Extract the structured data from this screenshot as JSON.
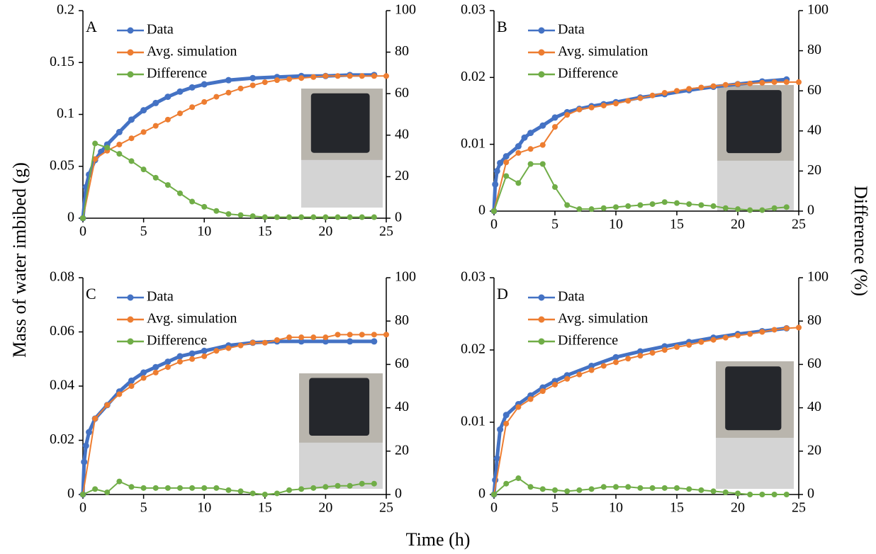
{
  "axis_labels": {
    "x_label": "Time (h)",
    "y_label": "Mass of water imbibed (g)",
    "y2_label": "Difference (%)"
  },
  "chart_data": [
    {
      "type": "line",
      "panel_label": "A",
      "legend": "upper left",
      "xlim": [
        0,
        25
      ],
      "xticks": [
        0,
        5,
        10,
        15,
        20,
        25
      ],
      "ylim": [
        0,
        0.2
      ],
      "yticks": [
        0,
        0.05,
        0.1,
        0.15,
        0.2
      ],
      "y2lim": [
        0,
        100
      ],
      "y2ticks": [
        0,
        20,
        40,
        60,
        80,
        100
      ],
      "series": [
        {
          "name": "Data",
          "color": "#4472c4",
          "x": [
            0,
            0.25,
            0.5,
            1,
            1.5,
            2,
            3,
            4,
            5,
            6,
            7,
            8,
            9,
            10,
            12,
            14,
            16,
            18,
            20,
            22,
            24
          ],
          "values": [
            0,
            0.03,
            0.042,
            0.056,
            0.064,
            0.071,
            0.083,
            0.095,
            0.104,
            0.111,
            0.117,
            0.122,
            0.126,
            0.129,
            0.133,
            0.135,
            0.136,
            0.137,
            0.137,
            0.138,
            0.138
          ]
        },
        {
          "name": "Avg. simulation",
          "color": "#ed7d31",
          "x": [
            0,
            1,
            2,
            3,
            4,
            5,
            6,
            7,
            8,
            9,
            10,
            11,
            12,
            13,
            14,
            15,
            16,
            17,
            18,
            19,
            20,
            21,
            22,
            23,
            24,
            25
          ],
          "values": [
            0,
            0.057,
            0.065,
            0.071,
            0.077,
            0.083,
            0.089,
            0.095,
            0.101,
            0.107,
            0.112,
            0.117,
            0.121,
            0.125,
            0.128,
            0.131,
            0.133,
            0.134,
            0.135,
            0.136,
            0.137,
            0.137,
            0.137,
            0.137,
            0.137,
            0.137
          ]
        },
        {
          "name": "Difference",
          "color": "#70ad47",
          "axis": "y2",
          "x": [
            0,
            1,
            2,
            3,
            4,
            5,
            6,
            7,
            8,
            9,
            10,
            11,
            12,
            13,
            14,
            15,
            16,
            17,
            18,
            19,
            20,
            21,
            22,
            23,
            24
          ],
          "values": [
            0,
            36,
            34,
            31,
            27.5,
            23.5,
            19.5,
            16,
            12,
            8,
            5.5,
            3.5,
            2,
            1.5,
            1,
            0.5,
            0.5,
            0.5,
            0.5,
            0.5,
            0.5,
            0.5,
            0.5,
            0.5,
            0.5
          ]
        }
      ]
    },
    {
      "type": "line",
      "panel_label": "B",
      "legend": "upper left",
      "xlim": [
        0,
        25
      ],
      "xticks": [
        0,
        5,
        10,
        15,
        20,
        25
      ],
      "ylim": [
        0,
        0.03
      ],
      "yticks": [
        0,
        0.01,
        0.02,
        0.03
      ],
      "y2lim": [
        0,
        100
      ],
      "y2ticks": [
        0,
        20,
        40,
        60,
        80,
        100
      ],
      "series": [
        {
          "name": "Data",
          "color": "#4472c4",
          "x": [
            0,
            0.1,
            0.25,
            0.5,
            1,
            2,
            2.5,
            3,
            4,
            5,
            6,
            7,
            8,
            9,
            10,
            12,
            14,
            16,
            18,
            20,
            22,
            24
          ],
          "values": [
            0,
            0.004,
            0.006,
            0.0072,
            0.0082,
            0.0097,
            0.011,
            0.0117,
            0.0128,
            0.014,
            0.0148,
            0.0153,
            0.0157,
            0.016,
            0.0163,
            0.017,
            0.0175,
            0.0181,
            0.0186,
            0.019,
            0.0194,
            0.0197
          ]
        },
        {
          "name": "Avg. simulation",
          "color": "#ed7d31",
          "x": [
            0,
            1,
            2,
            3,
            4,
            5,
            6,
            7,
            8,
            9,
            10,
            11,
            12,
            13,
            14,
            15,
            16,
            17,
            18,
            19,
            20,
            21,
            22,
            23,
            24,
            25
          ],
          "values": [
            0,
            0.0073,
            0.0087,
            0.0093,
            0.0099,
            0.0126,
            0.0144,
            0.0152,
            0.0155,
            0.0158,
            0.0161,
            0.0165,
            0.0169,
            0.0173,
            0.0177,
            0.018,
            0.0183,
            0.0185,
            0.0187,
            0.0189,
            0.019,
            0.0191,
            0.0192,
            0.0193,
            0.0193,
            0.0193
          ]
        },
        {
          "name": "Difference",
          "color": "#70ad47",
          "axis": "y2",
          "x": [
            0,
            1,
            2,
            3,
            4,
            5,
            6,
            7,
            8,
            9,
            10,
            11,
            12,
            13,
            14,
            15,
            16,
            17,
            18,
            19,
            20,
            21,
            22,
            23,
            24
          ],
          "values": [
            0,
            17.5,
            14,
            23.5,
            23.5,
            12,
            3,
            1,
            1,
            1.5,
            2,
            2.5,
            3,
            3.5,
            4.5,
            4,
            3.5,
            3,
            2.5,
            1.5,
            1,
            0.5,
            0.5,
            1.5,
            2
          ]
        }
      ]
    },
    {
      "type": "line",
      "panel_label": "C",
      "legend": "upper left",
      "xlim": [
        0,
        25
      ],
      "xticks": [
        0,
        5,
        10,
        15,
        20,
        25
      ],
      "ylim": [
        0,
        0.08
      ],
      "yticks": [
        0,
        0.02,
        0.04,
        0.06,
        0.08
      ],
      "y2lim": [
        0,
        100
      ],
      "y2ticks": [
        0,
        20,
        40,
        60,
        80,
        100
      ],
      "series": [
        {
          "name": "Data",
          "color": "#4472c4",
          "x": [
            0,
            0.1,
            0.25,
            0.5,
            1,
            2,
            3,
            4,
            5,
            6,
            7,
            8,
            9,
            10,
            12,
            14,
            16,
            18,
            20,
            22,
            24
          ],
          "values": [
            0,
            0.012,
            0.018,
            0.023,
            0.028,
            0.033,
            0.038,
            0.042,
            0.045,
            0.047,
            0.049,
            0.051,
            0.052,
            0.053,
            0.055,
            0.056,
            0.0565,
            0.0565,
            0.0565,
            0.0565,
            0.0565
          ]
        },
        {
          "name": "Avg. simulation",
          "color": "#ed7d31",
          "x": [
            0,
            1,
            2,
            3,
            4,
            5,
            6,
            7,
            8,
            9,
            10,
            11,
            12,
            13,
            14,
            15,
            16,
            17,
            18,
            19,
            20,
            21,
            22,
            23,
            24,
            25
          ],
          "values": [
            0,
            0.028,
            0.033,
            0.037,
            0.04,
            0.043,
            0.045,
            0.047,
            0.049,
            0.05,
            0.051,
            0.053,
            0.054,
            0.055,
            0.056,
            0.056,
            0.057,
            0.058,
            0.058,
            0.058,
            0.058,
            0.059,
            0.059,
            0.059,
            0.059,
            0.059
          ]
        },
        {
          "name": "Difference",
          "color": "#70ad47",
          "axis": "y2",
          "x": [
            0,
            1,
            2,
            3,
            4,
            5,
            6,
            7,
            8,
            9,
            10,
            11,
            12,
            13,
            14,
            15,
            16,
            17,
            18,
            19,
            20,
            21,
            22,
            23,
            24
          ],
          "values": [
            0,
            2.5,
            1,
            6,
            3.5,
            3,
            3,
            3,
            3,
            3,
            3,
            3,
            2,
            1.5,
            0.5,
            0,
            0.5,
            2,
            2.5,
            3,
            3.5,
            4,
            4,
            5,
            5
          ]
        }
      ]
    },
    {
      "type": "line",
      "panel_label": "D",
      "legend": "upper left",
      "xlim": [
        0,
        25
      ],
      "xticks": [
        0,
        5,
        10,
        15,
        20,
        25
      ],
      "ylim": [
        0,
        0.03
      ],
      "yticks": [
        0,
        0.01,
        0.02,
        0.03
      ],
      "y2lim": [
        0,
        100
      ],
      "y2ticks": [
        0,
        20,
        40,
        60,
        80,
        100
      ],
      "series": [
        {
          "name": "Data",
          "color": "#4472c4",
          "x": [
            0,
            0.1,
            0.25,
            0.5,
            1,
            2,
            3,
            4,
            5,
            6,
            8,
            10,
            12,
            14,
            16,
            18,
            20,
            22,
            24
          ],
          "values": [
            0,
            0.002,
            0.005,
            0.009,
            0.011,
            0.0125,
            0.0137,
            0.0148,
            0.0157,
            0.0165,
            0.0178,
            0.019,
            0.0198,
            0.0205,
            0.0211,
            0.0217,
            0.0222,
            0.0226,
            0.023
          ]
        },
        {
          "name": "Avg. simulation",
          "color": "#ed7d31",
          "x": [
            0,
            1,
            2,
            3,
            4,
            5,
            6,
            7,
            8,
            9,
            10,
            11,
            12,
            13,
            14,
            15,
            16,
            17,
            18,
            19,
            20,
            21,
            22,
            23,
            24,
            25
          ],
          "values": [
            0,
            0.0098,
            0.0121,
            0.0132,
            0.0143,
            0.0152,
            0.016,
            0.0166,
            0.0172,
            0.0178,
            0.0183,
            0.0188,
            0.0192,
            0.0196,
            0.02,
            0.0204,
            0.0207,
            0.0211,
            0.0214,
            0.0217,
            0.022,
            0.0222,
            0.0225,
            0.0228,
            0.023,
            0.0231
          ]
        },
        {
          "name": "Difference",
          "color": "#70ad47",
          "axis": "y2",
          "x": [
            0,
            1,
            2,
            3,
            4,
            5,
            6,
            7,
            8,
            9,
            10,
            11,
            12,
            13,
            14,
            15,
            16,
            17,
            18,
            19,
            20,
            21,
            22,
            23,
            24
          ],
          "values": [
            0,
            5,
            7.5,
            3.5,
            2.5,
            2,
            1.5,
            2,
            2.5,
            3.5,
            3.5,
            3.5,
            3,
            3,
            3,
            3,
            2.5,
            2,
            1.5,
            1,
            0.5,
            0,
            0,
            0,
            0
          ]
        }
      ]
    }
  ]
}
